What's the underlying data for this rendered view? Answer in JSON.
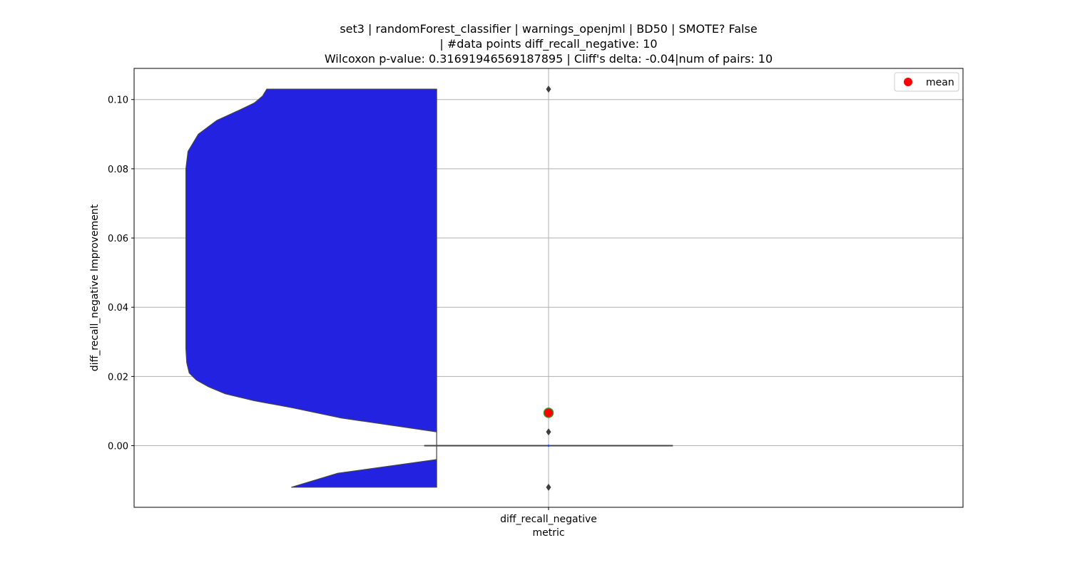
{
  "chart_data": {
    "type": "violin",
    "title_lines": [
      "set3 | randomForest_classifier | warnings_openjml | BD50 | SMOTE? False",
      "| #data points diff_recall_negative: 10",
      "Wilcoxon p-value: 0.31691946569187895 | Cliff's delta: -0.04|num of pairs: 10"
    ],
    "xlabel": "metric",
    "ylabel": "diff_recall_negative Improvement",
    "categories": [
      "diff_recall_negative"
    ],
    "ylim": [
      -0.0178,
      0.109
    ],
    "yticks": [
      0.0,
      0.02,
      0.04,
      0.06,
      0.08,
      0.1
    ],
    "ytick_labels": [
      "0.00",
      "0.02",
      "0.04",
      "0.06",
      "0.08",
      "0.10"
    ],
    "grid": true,
    "legend": {
      "position": "top-right",
      "entries": [
        {
          "label": "mean",
          "color": "#ff0000"
        }
      ]
    },
    "violin": {
      "color": "#2222e0",
      "side": "left",
      "density_profile": [
        {
          "y": -0.012,
          "w": 0.35
        },
        {
          "y": -0.008,
          "w": 0.24
        },
        {
          "y": -0.004,
          "w": 0.0
        },
        {
          "y": 0.0,
          "w": 0.0
        },
        {
          "y": 0.004,
          "w": 0.0
        },
        {
          "y": 0.008,
          "w": 0.23
        },
        {
          "y": 0.011,
          "w": 0.35
        },
        {
          "y": 0.013,
          "w": 0.44
        },
        {
          "y": 0.015,
          "w": 0.51
        },
        {
          "y": 0.017,
          "w": 0.55
        },
        {
          "y": 0.019,
          "w": 0.58
        },
        {
          "y": 0.021,
          "w": 0.597
        },
        {
          "y": 0.024,
          "w": 0.603
        },
        {
          "y": 0.028,
          "w": 0.605
        },
        {
          "y": 0.08,
          "w": 0.605
        },
        {
          "y": 0.085,
          "w": 0.6
        },
        {
          "y": 0.09,
          "w": 0.575
        },
        {
          "y": 0.094,
          "w": 0.53
        },
        {
          "y": 0.097,
          "w": 0.475
        },
        {
          "y": 0.099,
          "w": 0.44
        },
        {
          "y": 0.101,
          "w": 0.42
        },
        {
          "y": 0.103,
          "w": 0.41
        }
      ]
    },
    "boxplot": {
      "q1": 0.0,
      "median": 0.0,
      "q3": 0.0,
      "whisker_low": 0.0,
      "whisker_high": 0.0,
      "outliers": [
        0.103,
        0.004,
        -0.012
      ],
      "mean": 0.0095
    }
  }
}
